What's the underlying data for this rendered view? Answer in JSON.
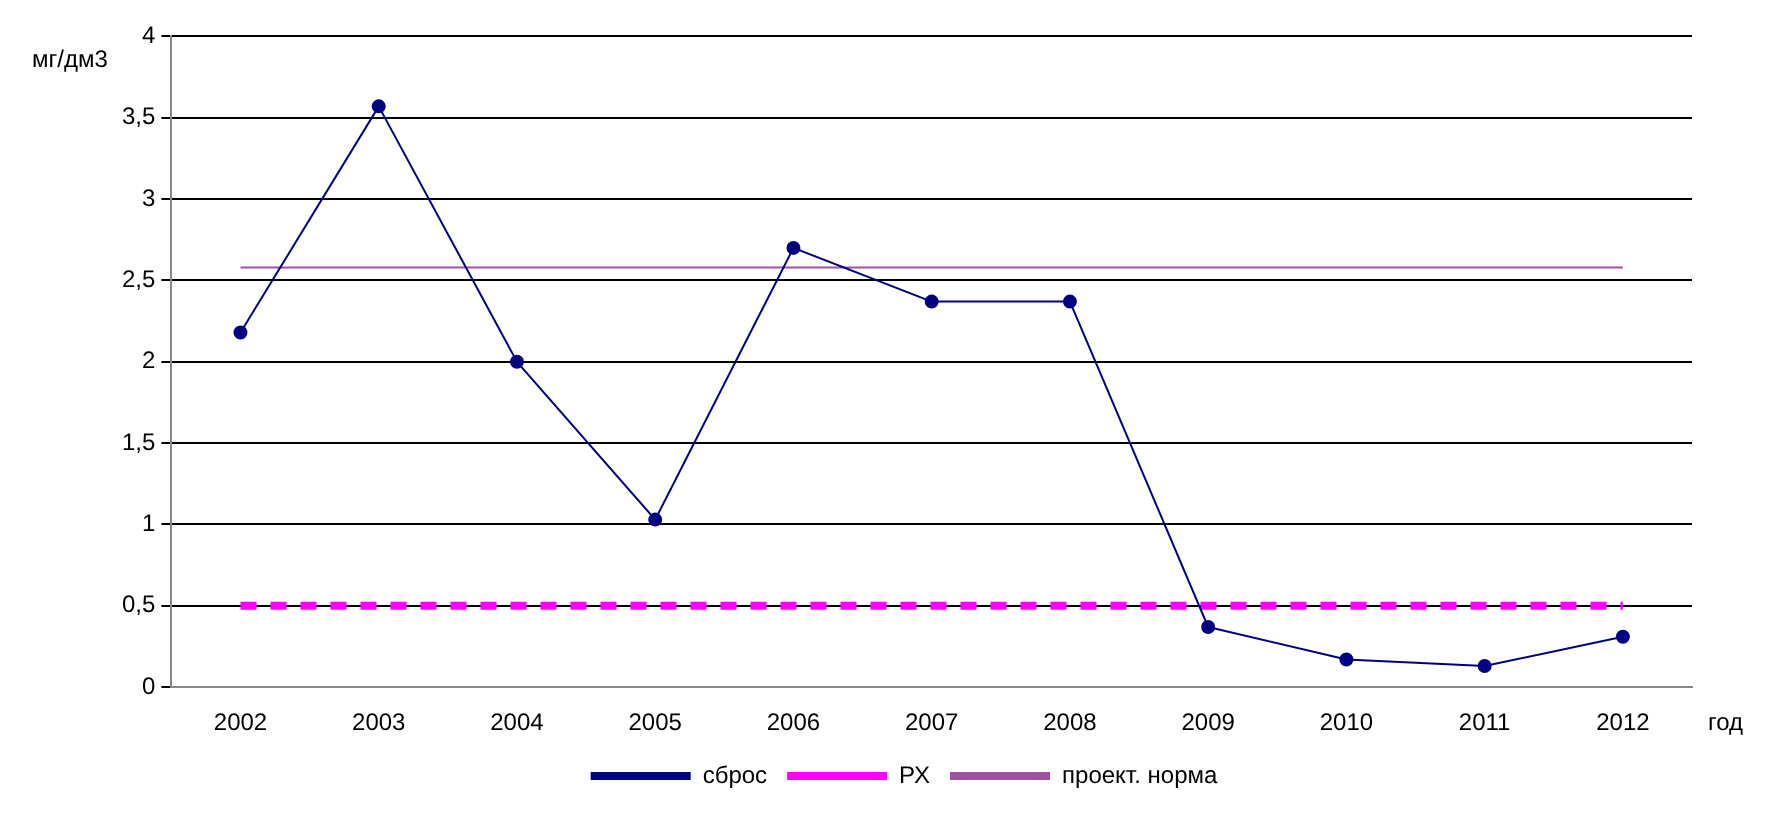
{
  "chart_data": {
    "type": "line",
    "ylabel": "мг/дм3",
    "xlabel": "год",
    "categories": [
      "2002",
      "2003",
      "2004",
      "2005",
      "2006",
      "2007",
      "2008",
      "2009",
      "2010",
      "2011",
      "2012"
    ],
    "series": [
      {
        "name": "сброс",
        "color": "#000080",
        "marker": "circle",
        "line_style": "solid",
        "values": [
          2.18,
          3.57,
          2.0,
          1.03,
          2.7,
          2.37,
          2.37,
          0.37,
          0.17,
          0.13,
          0.31
        ]
      },
      {
        "name": "РХ",
        "color": "#ff00ff",
        "marker": "none",
        "line_style": "dashed",
        "values": [
          0.5,
          0.5,
          0.5,
          0.5,
          0.5,
          0.5,
          0.5,
          0.5,
          0.5,
          0.5,
          0.5
        ]
      },
      {
        "name": "проект. норма",
        "color": "#a050a0",
        "marker": "none",
        "line_style": "solid",
        "values": [
          2.58,
          2.58,
          2.58,
          2.58,
          2.58,
          2.58,
          2.58,
          2.58,
          2.58,
          2.58,
          2.58
        ]
      }
    ],
    "ylim": [
      0,
      4
    ],
    "yticks": [
      {
        "value": 0,
        "label": "0"
      },
      {
        "value": 0.5,
        "label": "0,5"
      },
      {
        "value": 1,
        "label": "1"
      },
      {
        "value": 1.5,
        "label": "1,5"
      },
      {
        "value": 2,
        "label": "2"
      },
      {
        "value": 2.5,
        "label": "2,5"
      },
      {
        "value": 3,
        "label": "3"
      },
      {
        "value": 3.5,
        "label": "3,5"
      },
      {
        "value": 4,
        "label": "4"
      }
    ],
    "grid": "y",
    "legend": "bottom"
  }
}
